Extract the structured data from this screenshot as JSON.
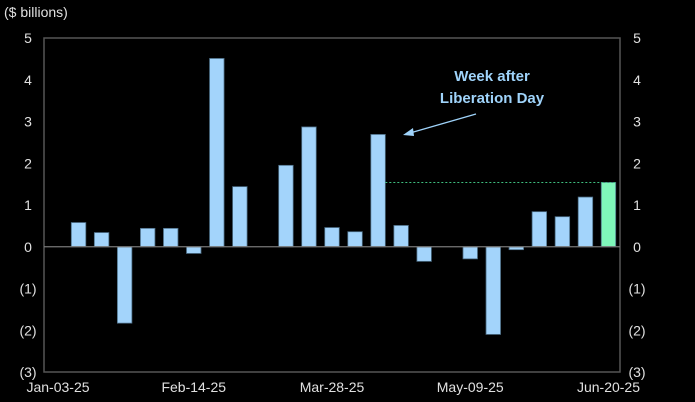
{
  "chart_data": {
    "type": "bar",
    "ylabel": "($ billions)",
    "ylim": [
      -3,
      5
    ],
    "yticks": [
      5,
      4,
      3,
      2,
      1,
      0,
      -1,
      -2,
      -3
    ],
    "ytick_labels": [
      "5",
      "4",
      "3",
      "2",
      "1",
      "0",
      "(1)",
      "(2)",
      "(3)"
    ],
    "xtick_labels": [
      "Jan-03-25",
      "Feb-14-25",
      "Mar-28-25",
      "May-09-25",
      "Jun-20-25"
    ],
    "xtick_indices": [
      0,
      6,
      12,
      18,
      24
    ],
    "categories": [
      "Jan-03-25",
      "Jan-10-25",
      "Jan-17-25",
      "Jan-24-25",
      "Jan-31-25",
      "Feb-07-25",
      "Feb-14-25",
      "Feb-21-25",
      "Feb-28-25",
      "Mar-07-25",
      "Mar-14-25",
      "Mar-21-25",
      "Mar-28-25",
      "Apr-04-25",
      "Apr-11-25",
      "Apr-18-25",
      "Apr-25-25",
      "May-02-25",
      "May-09-25",
      "May-16-25",
      "May-23-25",
      "May-30-25",
      "Jun-06-25",
      "Jun-13-25",
      "Jun-20-25"
    ],
    "values": [
      null,
      0.58,
      0.34,
      -1.83,
      0.44,
      0.44,
      -0.16,
      4.51,
      1.44,
      null,
      1.95,
      2.87,
      0.46,
      0.36,
      2.69,
      0.51,
      -0.35,
      null,
      -0.29,
      -2.1,
      -0.07,
      0.84,
      0.72,
      1.19,
      1.54
    ],
    "highlight_index": 24,
    "reference_line": {
      "value": 1.54,
      "from_index": 14,
      "to_index": 24,
      "style": "dashed"
    },
    "annotation": {
      "lines": [
        "Week after",
        "Liberation Day"
      ],
      "points_to_index": 14
    },
    "grid": false,
    "colors": {
      "bar": "#a3d4fb",
      "bar_stroke": "#4d6e86",
      "highlight": "#7ff7ba",
      "reference": "#3fbf7f",
      "annotation": "#9fd3fa",
      "axis": "#555555"
    }
  }
}
